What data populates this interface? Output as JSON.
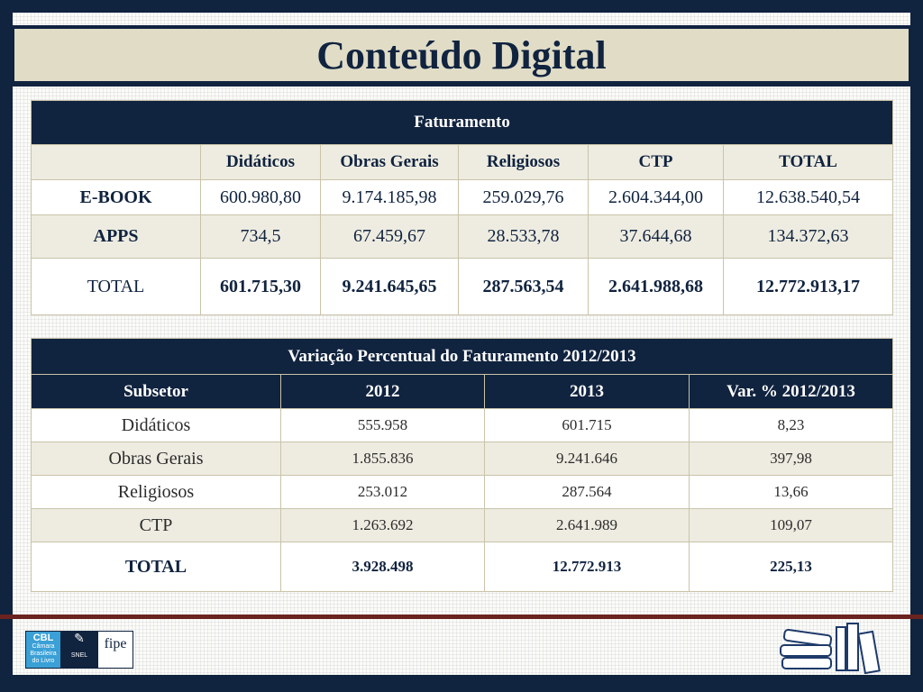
{
  "title": "Conteúdo Digital",
  "table1": {
    "caption": "Faturamento",
    "columns": [
      "",
      "Didáticos",
      "Obras Gerais",
      "Religiosos",
      "CTP",
      "TOTAL"
    ],
    "rows": [
      {
        "label": "E-BOOK",
        "values": [
          "600.980,80",
          "9.174.185,98",
          "259.029,76",
          "2.604.344,00",
          "12.638.540,54"
        ]
      },
      {
        "label": "APPS",
        "values": [
          "734,5",
          "67.459,67",
          "28.533,78",
          "37.644,68",
          "134.372,63"
        ]
      },
      {
        "label": "TOTAL",
        "values": [
          "601.715,30",
          "9.241.645,65",
          "287.563,54",
          "2.641.988,68",
          "12.772.913,17"
        ]
      }
    ]
  },
  "table2": {
    "caption": "Variação Percentual do Faturamento 2012/2013",
    "columns": [
      "Subsetor",
      "2012",
      "2013",
      "Var. % 2012/2013"
    ],
    "rows": [
      {
        "label": "Didáticos",
        "values": [
          "555.958",
          "601.715",
          "8,23"
        ]
      },
      {
        "label": "Obras Gerais",
        "values": [
          "1.855.836",
          "9.241.646",
          "397,98"
        ]
      },
      {
        "label": "Religiosos",
        "values": [
          "253.012",
          "287.564",
          "13,66"
        ]
      },
      {
        "label": "CTP",
        "values": [
          "1.263.692",
          "2.641.989",
          "109,07"
        ]
      },
      {
        "label": "TOTAL",
        "values": [
          "3.928.498",
          "12.772.913",
          "225,13"
        ]
      }
    ]
  },
  "footer": {
    "logos": [
      "CBL Câmara Brasileira do Livro",
      "SNEL",
      "fipe"
    ],
    "decoration": "books-illustration"
  },
  "colors": {
    "navy": "#10233f",
    "beige": "#e0dcc6",
    "accent_line": "#6b2320"
  }
}
